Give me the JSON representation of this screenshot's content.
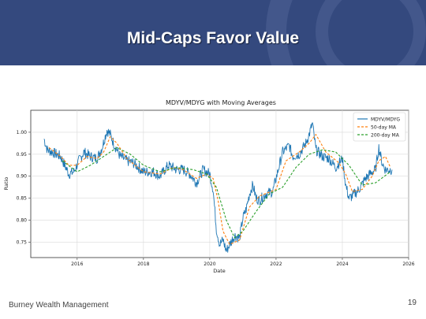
{
  "slide": {
    "title": "Mid-Caps Favor Value",
    "footer": "Burney Wealth Management",
    "page_number": "19",
    "header_color": "#34497e"
  },
  "chart_data": {
    "type": "line",
    "title": "MDYV/MDYG with Moving Averages",
    "xlabel": "Date",
    "ylabel": "Ratio",
    "xlim": [
      2014.6,
      2026.0
    ],
    "ylim": [
      0.715,
      1.05
    ],
    "x_ticks": [
      2016,
      2018,
      2020,
      2022,
      2024,
      2026
    ],
    "y_ticks": [
      0.75,
      0.8,
      0.85,
      0.9,
      0.95,
      1.0
    ],
    "grid": true,
    "legend_position": "top-right",
    "series": [
      {
        "name": "MDYV/MDYG",
        "color": "#1f77b4",
        "style": "solid",
        "x": [
          2015.0,
          2015.1,
          2015.25,
          2015.5,
          2015.75,
          2015.9,
          2016.05,
          2016.2,
          2016.4,
          2016.6,
          2016.75,
          2016.9,
          2017.0,
          2017.1,
          2017.3,
          2017.5,
          2017.7,
          2018.0,
          2018.3,
          2018.5,
          2018.75,
          2019.0,
          2019.2,
          2019.4,
          2019.6,
          2019.8,
          2020.0,
          2020.1,
          2020.2,
          2020.3,
          2020.4,
          2020.5,
          2020.6,
          2020.75,
          2020.9,
          2021.0,
          2021.1,
          2021.2,
          2021.3,
          2021.4,
          2021.5,
          2021.7,
          2021.9,
          2022.0,
          2022.2,
          2022.4,
          2022.5,
          2022.7,
          2022.9,
          2023.0,
          2023.1,
          2023.2,
          2023.4,
          2023.6,
          2023.8,
          2024.0,
          2024.1,
          2024.2,
          2024.3,
          2024.5,
          2024.7,
          2024.9,
          2025.0,
          2025.1,
          2025.2,
          2025.3,
          2025.5
        ],
        "y": [
          0.985,
          0.96,
          0.955,
          0.945,
          0.905,
          0.91,
          0.935,
          0.955,
          0.945,
          0.94,
          0.965,
          1.005,
          0.995,
          0.975,
          0.945,
          0.935,
          0.93,
          0.91,
          0.91,
          0.9,
          0.925,
          0.915,
          0.915,
          0.905,
          0.885,
          0.915,
          0.905,
          0.87,
          0.78,
          0.745,
          0.755,
          0.73,
          0.745,
          0.765,
          0.76,
          0.805,
          0.825,
          0.86,
          0.88,
          0.85,
          0.845,
          0.86,
          0.865,
          0.895,
          0.955,
          0.97,
          0.945,
          0.95,
          0.975,
          0.995,
          1.02,
          0.96,
          0.945,
          0.94,
          0.92,
          0.94,
          0.88,
          0.85,
          0.855,
          0.87,
          0.895,
          0.91,
          0.915,
          0.965,
          0.93,
          0.915,
          0.915
        ]
      },
      {
        "name": "50-day MA",
        "color": "#ff7f0e",
        "style": "dashed",
        "x": [
          2015.15,
          2015.5,
          2015.75,
          2016.0,
          2016.3,
          2016.6,
          2016.8,
          2017.0,
          2017.2,
          2017.5,
          2018.0,
          2018.5,
          2018.9,
          2019.2,
          2019.6,
          2019.9,
          2020.1,
          2020.25,
          2020.4,
          2020.6,
          2020.9,
          2021.2,
          2021.5,
          2022.0,
          2022.3,
          2022.7,
          2023.0,
          2023.2,
          2023.5,
          2023.9,
          2024.1,
          2024.3,
          2024.6,
          2024.9,
          2025.1,
          2025.3,
          2025.45
        ],
        "y": [
          0.965,
          0.945,
          0.925,
          0.925,
          0.945,
          0.94,
          0.955,
          0.99,
          0.975,
          0.94,
          0.91,
          0.905,
          0.92,
          0.915,
          0.895,
          0.905,
          0.895,
          0.845,
          0.775,
          0.745,
          0.755,
          0.83,
          0.855,
          0.87,
          0.935,
          0.955,
          0.975,
          0.995,
          0.955,
          0.93,
          0.905,
          0.865,
          0.87,
          0.9,
          0.935,
          0.945,
          0.92
        ]
      },
      {
        "name": "200-day MA",
        "color": "#2ca02c",
        "style": "dashed",
        "x": [
          2015.55,
          2016.0,
          2016.4,
          2016.8,
          2017.2,
          2017.6,
          2018.0,
          2018.5,
          2019.0,
          2019.5,
          2019.9,
          2020.2,
          2020.5,
          2020.75,
          2021.0,
          2021.4,
          2021.8,
          2022.2,
          2022.6,
          2023.0,
          2023.4,
          2023.8,
          2024.2,
          2024.6,
          2025.0,
          2025.45
        ],
        "y": [
          0.935,
          0.91,
          0.925,
          0.945,
          0.965,
          0.95,
          0.925,
          0.91,
          0.92,
          0.915,
          0.905,
          0.875,
          0.8,
          0.76,
          0.775,
          0.82,
          0.86,
          0.875,
          0.92,
          0.95,
          0.96,
          0.955,
          0.925,
          0.88,
          0.885,
          0.91
        ]
      }
    ]
  }
}
